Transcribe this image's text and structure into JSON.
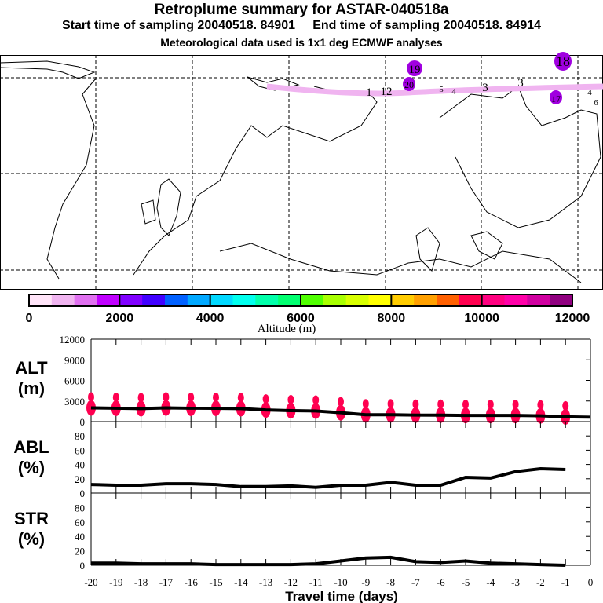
{
  "title": "Retroplume summary for ASTAR-040518a",
  "subtitle": "Start time of sampling 20040518. 84901     End time of sampling 20040518. 84914",
  "met_note": "Meteorological data used is 1x1 deg ECMWF analyses",
  "map": {
    "labels": [
      {
        "text": "18",
        "lon": "purple",
        "big": true
      },
      {
        "text": "19"
      },
      {
        "text": "20"
      },
      {
        "text": "17"
      },
      {
        "text": "3"
      },
      {
        "text": "3"
      },
      {
        "text": "4"
      },
      {
        "text": "5"
      },
      {
        "text": "4"
      },
      {
        "text": "6"
      },
      {
        "text": "12"
      },
      {
        "text": "1"
      }
    ],
    "plume_color": "#f0b4f0",
    "marker_color": "#a000e0"
  },
  "colorbar": {
    "label": "Altitude (m)",
    "ticks": [
      "0",
      "2000",
      "4000",
      "6000",
      "8000",
      "10000",
      "12000"
    ],
    "colors": [
      "#ffe4f8",
      "#f0b4f0",
      "#e070f0",
      "#c000ff",
      "#8000ff",
      "#4000ff",
      "#0060ff",
      "#00a8ff",
      "#00d8ff",
      "#00ffee",
      "#00ffaa",
      "#00ff70",
      "#50ff00",
      "#a8ff00",
      "#d8ff00",
      "#ffff00",
      "#ffcc00",
      "#ffa000",
      "#ff6000",
      "#ff0050",
      "#ff0080",
      "#ff00a8",
      "#d000a0",
      "#900080"
    ]
  },
  "chart_data": [
    {
      "type": "line",
      "panel": "ALT",
      "ylabel": "ALT\n(m)",
      "ylabel1": "ALT",
      "ylabel2": "(m)",
      "ylim": [
        0,
        12000
      ],
      "yticks": [
        "0",
        "3000",
        "6000",
        "9000",
        "12000"
      ],
      "x": [
        -20,
        -19,
        -18,
        -17,
        -16,
        -15,
        -14,
        -13,
        -12,
        -11,
        -10,
        -9,
        -8,
        -7,
        -6,
        -5,
        -4,
        -3,
        -2,
        -1,
        0
      ],
      "values": [
        2000,
        1950,
        1900,
        2000,
        1950,
        1950,
        1900,
        1700,
        1600,
        1550,
        1300,
        1000,
        1000,
        950,
        950,
        900,
        900,
        900,
        850,
        700,
        650
      ],
      "marker_color": "#ff0050"
    },
    {
      "type": "line",
      "panel": "ABL",
      "ylabel1": "ABL",
      "ylabel2": "(%)",
      "ylim": [
        0,
        100
      ],
      "yticks": [
        "0",
        "20",
        "40",
        "60",
        "80"
      ],
      "x": [
        -20,
        -19,
        -18,
        -17,
        -16,
        -15,
        -14,
        -13,
        -12,
        -11,
        -10,
        -9,
        -8,
        -7,
        -6,
        -5,
        -4,
        -3,
        -2,
        -1
      ],
      "values": [
        12,
        11,
        11,
        13,
        13,
        12,
        9,
        9,
        10,
        8,
        11,
        11,
        15,
        11,
        11,
        22,
        21,
        30,
        34,
        33
      ]
    },
    {
      "type": "line",
      "panel": "STR",
      "ylabel1": "STR",
      "ylabel2": "(%)",
      "ylim": [
        0,
        100
      ],
      "yticks": [
        "0",
        "20",
        "40",
        "60",
        "80"
      ],
      "x": [
        -20,
        -19,
        -18,
        -17,
        -16,
        -15,
        -14,
        -13,
        -12,
        -11,
        -10,
        -9,
        -8,
        -7,
        -6,
        -5,
        -4,
        -3,
        -2,
        -1
      ],
      "values": [
        3,
        3,
        2,
        2,
        2,
        1,
        1,
        1,
        1,
        2,
        6,
        10,
        11,
        5,
        4,
        6,
        3,
        2,
        1,
        0
      ]
    }
  ],
  "xaxis": {
    "label": "Travel time (days)",
    "ticks": [
      "-20",
      "-19",
      "-18",
      "-17",
      "-16",
      "-15",
      "-14",
      "-13",
      "-12",
      "-11",
      "-10",
      "-9",
      "-8",
      "-7",
      "-6",
      "-5",
      "-4",
      "-3",
      "-2",
      "-1",
      "0"
    ]
  }
}
